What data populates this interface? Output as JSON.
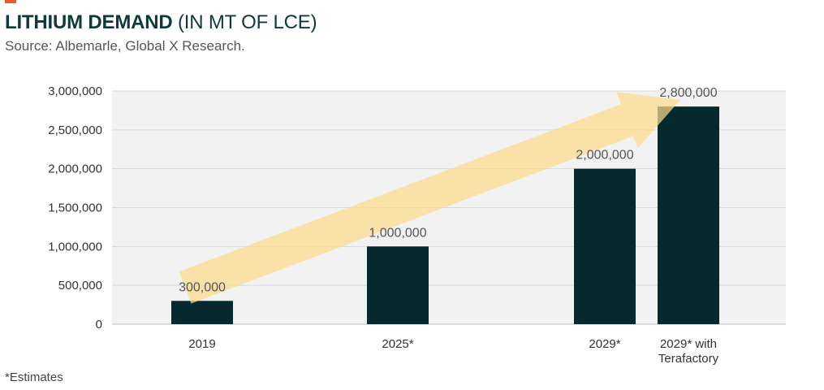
{
  "header": {
    "title_bold": "LITHIUM DEMAND",
    "title_rest": " (IN MT OF LCE)",
    "subtitle": "Source: Albemarle, Global X Research."
  },
  "footnote": "*Estimates",
  "colors": {
    "accent": "#f05a22",
    "bar": "#05292d",
    "arrow": "#fbd98a",
    "plot_bg": "#f2f2f2",
    "title": "#0f3a3c"
  },
  "chart_data": {
    "type": "bar",
    "title": "LITHIUM DEMAND (IN MT OF LCE)",
    "categories": [
      [
        "2019"
      ],
      [
        "2025*"
      ],
      [
        "2029*"
      ],
      [
        "2029* with",
        "Terafactory"
      ]
    ],
    "values": [
      300000,
      1000000,
      2000000,
      2800000
    ],
    "data_labels": [
      "300,000",
      "1,000,000",
      "2,000,000",
      "2,800,000"
    ],
    "ylim": [
      0,
      3000000
    ],
    "yticks": [
      0,
      500000,
      1000000,
      1500000,
      2000000,
      2500000,
      3000000
    ],
    "ytick_labels": [
      "0",
      "500,000",
      "1,000,000",
      "1,500,000",
      "2,000,000",
      "2,500,000",
      "3,000,000"
    ],
    "xlabel": "",
    "ylabel": "",
    "grid": true,
    "legend": "none",
    "annotation": "trend-arrow"
  }
}
